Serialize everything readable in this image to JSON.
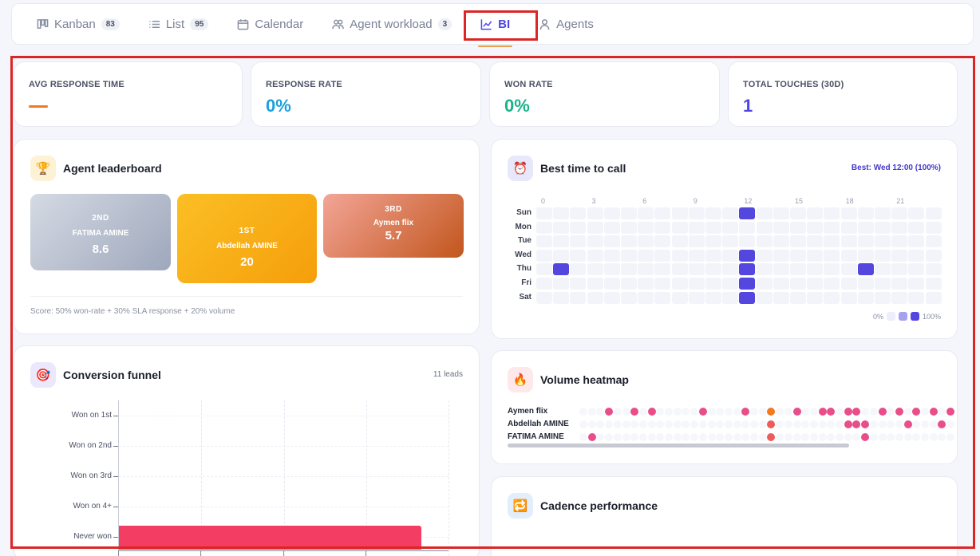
{
  "tabs": [
    {
      "label": "Kanban",
      "count": "83",
      "icon": "kanban-icon"
    },
    {
      "label": "List",
      "count": "95",
      "icon": "list-icon"
    },
    {
      "label": "Calendar",
      "count": "",
      "icon": "calendar-icon"
    },
    {
      "label": "Agent workload",
      "count": "3",
      "icon": "users-icon"
    },
    {
      "label": "BI",
      "count": "",
      "icon": "chart-icon",
      "active": true
    },
    {
      "label": "Agents",
      "count": "",
      "icon": "user-icon"
    }
  ],
  "kpis": [
    {
      "label": "AVG RESPONSE TIME",
      "value": "—",
      "color": "#f07a1f"
    },
    {
      "label": "RESPONSE RATE",
      "value": "0%",
      "color": "#1ea0db"
    },
    {
      "label": "WON RATE",
      "value": "0%",
      "color": "#19b38a"
    },
    {
      "label": "TOTAL TOUCHES (30D)",
      "value": "1",
      "color": "#4f46e5"
    }
  ],
  "leaderboard": {
    "title": "Agent leaderboard",
    "icon": "trophy-icon",
    "podium": [
      {
        "rank": "2ND",
        "name": "FATIMA AMINE",
        "score": "8.6"
      },
      {
        "rank": "1ST",
        "name": "Abdellah AMINE",
        "score": "20"
      },
      {
        "rank": "3RD",
        "name": "Aymen flix",
        "score": "5.7"
      }
    ],
    "note": "Score: 50% won-rate + 30% SLA response + 20% volume"
  },
  "best_time": {
    "title": "Best time to call",
    "icon": "alarm-clock-icon",
    "best": "Best: Wed 12:00 (100%)",
    "hour_labels": [
      "0",
      "3",
      "6",
      "9",
      "12",
      "15",
      "18",
      "21"
    ],
    "days": [
      "Sun",
      "Mon",
      "Tue",
      "Wed",
      "Thu",
      "Fri",
      "Sat"
    ],
    "active_cells": [
      [
        0,
        12
      ],
      [
        3,
        12
      ],
      [
        4,
        1
      ],
      [
        4,
        12
      ],
      [
        4,
        19
      ],
      [
        5,
        12
      ],
      [
        6,
        12
      ]
    ],
    "legend_min": "0%",
    "legend_max": "100%"
  },
  "volume": {
    "title": "Volume heatmap",
    "icon": "flame-icon",
    "agents": [
      "Aymen flix",
      "Abdellah AMINE",
      "FATIMA AMINE"
    ]
  },
  "funnel": {
    "title": "Conversion funnel",
    "icon": "target-icon",
    "leads": "11 leads"
  },
  "cadence": {
    "title": "Cadence performance",
    "icon": "repeat-icon"
  },
  "chart_data": {
    "type": "bar",
    "orientation": "horizontal",
    "categories": [
      "Won on 1st",
      "Won on 2nd",
      "Won on 3rd",
      "Won on 4+",
      "Never won"
    ],
    "values": [
      0,
      0,
      0,
      0,
      11
    ],
    "title": "",
    "xlim": [
      0,
      12
    ],
    "grid": true
  }
}
